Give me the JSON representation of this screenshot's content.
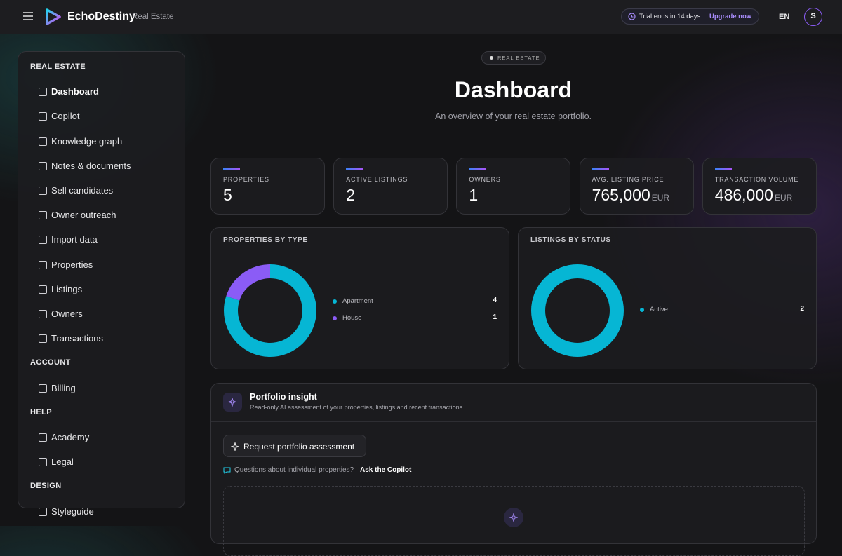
{
  "header": {
    "brand": "EchoDestiny",
    "product": "Real Estate",
    "trial": "Trial ends in 14 days",
    "upgrade": "Upgrade now",
    "language": "EN",
    "avatar": "S"
  },
  "sidebar": {
    "sections": [
      {
        "title": "REAL ESTATE",
        "items": [
          {
            "label": "Dashboard",
            "active": true
          },
          {
            "label": "Copilot"
          },
          {
            "label": "Knowledge graph"
          },
          {
            "label": "Notes & documents"
          },
          {
            "label": "Sell candidates"
          },
          {
            "label": "Owner outreach"
          },
          {
            "label": "Import data"
          },
          {
            "label": "Properties"
          },
          {
            "label": "Listings"
          },
          {
            "label": "Owners"
          },
          {
            "label": "Transactions"
          }
        ]
      },
      {
        "title": "ACCOUNT",
        "items": [
          {
            "label": "Billing"
          }
        ]
      },
      {
        "title": "HELP",
        "items": [
          {
            "label": "Academy"
          },
          {
            "label": "Legal"
          }
        ]
      },
      {
        "title": "DESIGN",
        "items": [
          {
            "label": "Styleguide"
          }
        ]
      }
    ]
  },
  "page": {
    "badge": "REAL ESTATE",
    "title": "Dashboard",
    "subtitle": "An overview of your real estate portfolio."
  },
  "stats": [
    {
      "label": "PROPERTIES",
      "value": "5"
    },
    {
      "label": "ACTIVE LISTINGS",
      "value": "2"
    },
    {
      "label": "OWNERS",
      "value": "1"
    },
    {
      "label": "AVG. LISTING PRICE",
      "value": "765,000",
      "unit": "EUR"
    },
    {
      "label": "TRANSACTION VOLUME",
      "value": "486,000",
      "unit": "EUR"
    }
  ],
  "charts": [
    {
      "type": "donut",
      "title": "PROPERTIES BY TYPE",
      "categories": [
        "Apartment",
        "House"
      ],
      "values": [
        4,
        1
      ],
      "colors": [
        "#06b6d4",
        "#8b5cf6"
      ]
    },
    {
      "type": "donut",
      "title": "LISTINGS BY STATUS",
      "categories": [
        "Active"
      ],
      "values": [
        2
      ],
      "colors": [
        "#06b6d4"
      ]
    }
  ],
  "insight": {
    "title": "Portfolio insight",
    "description": "Read-only AI assessment of your properties, listings and recent transactions.",
    "button": "Request portfolio assessment",
    "question": "Questions about individual properties?",
    "link": "Ask the Copilot"
  }
}
